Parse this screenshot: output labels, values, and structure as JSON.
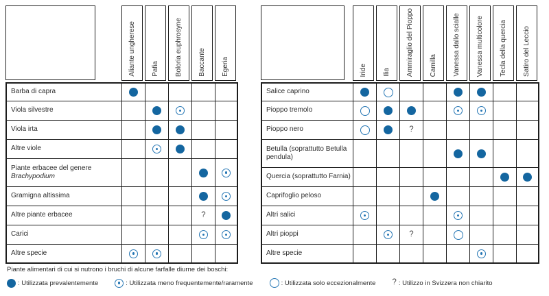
{
  "colors": {
    "symbol_fill": "#1466a0",
    "symbol_ring": "#2576b4",
    "grid_border": "#1c1c1c",
    "text": "#2b2b2b"
  },
  "symbol_semantics": {
    "full": "utilizzata-prevalentemente",
    "rare": "utilizzata-meno-frequentemente",
    "exc": "utilizzata-solo-eccezionalmente",
    "unknown": "utilizzo-non-chiarito"
  },
  "tables": [
    {
      "name": "farfalle-violette-graminacee",
      "columns": [
        "Aliante ungherese",
        "Pafia",
        "Boloria euphrosyne",
        "Baccante",
        "Egeria"
      ],
      "rows": [
        {
          "label_lines": [
            {
              "text": "Barba di capra"
            }
          ],
          "cells": [
            "full",
            "",
            "",
            "",
            ""
          ]
        },
        {
          "label_lines": [
            {
              "text": "Viola silvestre"
            }
          ],
          "cells": [
            "",
            "full",
            "rare",
            "",
            ""
          ]
        },
        {
          "label_lines": [
            {
              "text": "Viola irta"
            }
          ],
          "cells": [
            "",
            "full",
            "full",
            "",
            ""
          ]
        },
        {
          "label_lines": [
            {
              "text": "Altre viole"
            }
          ],
          "cells": [
            "",
            "rare",
            "full",
            "",
            ""
          ]
        },
        {
          "label_lines": [
            {
              "text": "Piante erbacee del genere"
            },
            {
              "text": "Brachypodium",
              "italic": true
            }
          ],
          "cells": [
            "",
            "",
            "",
            "full",
            "rare"
          ]
        },
        {
          "label_lines": [
            {
              "text": "Gramigna altissima"
            }
          ],
          "cells": [
            "",
            "",
            "",
            "full",
            "rare"
          ]
        },
        {
          "label_lines": [
            {
              "text": "Altre piante erbacee"
            }
          ],
          "cells": [
            "",
            "",
            "",
            "unknown",
            "full"
          ]
        },
        {
          "label_lines": [
            {
              "text": "Carici"
            }
          ],
          "cells": [
            "",
            "",
            "",
            "rare",
            "rare"
          ]
        },
        {
          "label_lines": [
            {
              "text": "Altre specie"
            }
          ],
          "cells": [
            "rare",
            "rare",
            "",
            "",
            ""
          ]
        }
      ]
    },
    {
      "name": "farfalle-alberi-boschi",
      "columns": [
        "Iride",
        "Ilia",
        "Ammiraglio del Pioppo",
        "Camilla",
        "Vanessa dallo scialle",
        "Vanessa multicolore",
        "Tecla della quercia",
        "Satiro del Leccio"
      ],
      "rows": [
        {
          "label_lines": [
            {
              "text": "Salice caprino"
            }
          ],
          "cells": [
            "full",
            "exc",
            "",
            "",
            "full",
            "full",
            "",
            ""
          ]
        },
        {
          "label_lines": [
            {
              "text": "Pioppo tremolo"
            }
          ],
          "cells": [
            "exc",
            "full",
            "full",
            "",
            "rare",
            "rare",
            "",
            ""
          ]
        },
        {
          "label_lines": [
            {
              "text": "Pioppo nero"
            }
          ],
          "cells": [
            "exc",
            "full",
            "unknown",
            "",
            "",
            "",
            "",
            ""
          ]
        },
        {
          "label_lines": [
            {
              "text": "Betulla (soprattutto Betulla"
            },
            {
              "text": "pendula)"
            }
          ],
          "cells": [
            "",
            "",
            "",
            "",
            "full",
            "full",
            "",
            ""
          ]
        },
        {
          "label_lines": [
            {
              "text": "Quercia (soprattutto Farnia)"
            }
          ],
          "cells": [
            "",
            "",
            "",
            "",
            "",
            "",
            "full",
            "full"
          ]
        },
        {
          "label_lines": [
            {
              "text": "Caprifoglio peloso"
            }
          ],
          "cells": [
            "",
            "",
            "",
            "full",
            "",
            "",
            "",
            ""
          ]
        },
        {
          "label_lines": [
            {
              "text": "Altri salici"
            }
          ],
          "cells": [
            "rare",
            "",
            "",
            "",
            "rare",
            "",
            "",
            ""
          ]
        },
        {
          "label_lines": [
            {
              "text": "Altri pioppi"
            }
          ],
          "cells": [
            "",
            "rare",
            "unknown",
            "",
            "exc",
            "",
            "",
            ""
          ]
        },
        {
          "label_lines": [
            {
              "text": "Altre specie"
            }
          ],
          "cells": [
            "",
            "",
            "",
            "",
            "",
            "rare",
            "",
            ""
          ]
        }
      ]
    }
  ],
  "legend": {
    "caption": "Piante alimentari di cui si nutrono i bruchi di alcune farfalle diurne dei boschi:",
    "items": [
      {
        "symbol": "full",
        "text": ": Utilizzata prevalentemente"
      },
      {
        "symbol": "rare",
        "text": ": Utilizzata meno frequentemente/raramente"
      },
      {
        "symbol": "exc",
        "text": ": Utilizzata solo eccezionalmente"
      },
      {
        "symbol": "unknown",
        "text": ": Utilizzo in Svizzera non chiarito"
      }
    ]
  }
}
